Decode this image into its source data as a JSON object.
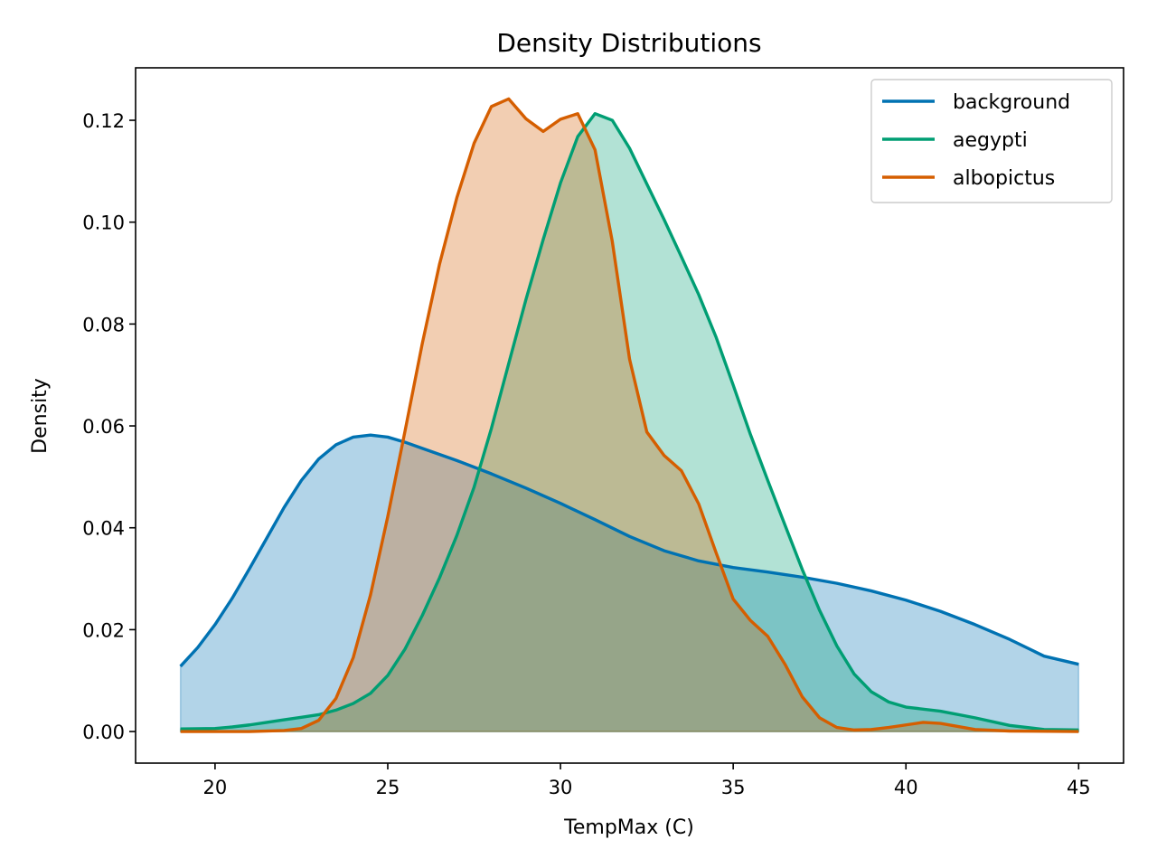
{
  "chart_data": {
    "type": "area",
    "title": "Density Distributions",
    "xlabel": "TempMax (C)",
    "ylabel": "Density",
    "xlim": [
      17.7,
      46.3
    ],
    "ylim": [
      -0.0062,
      0.1303
    ],
    "xticks": [
      20,
      25,
      30,
      35,
      40,
      45
    ],
    "yticks": [
      0.0,
      0.02,
      0.04,
      0.06,
      0.08,
      0.1,
      0.12
    ],
    "xtick_labels": [
      "20",
      "25",
      "30",
      "35",
      "40",
      "45"
    ],
    "ytick_labels": [
      "0.00",
      "0.02",
      "0.04",
      "0.06",
      "0.08",
      "0.10",
      "0.12"
    ],
    "grid": false,
    "legend_position": "top-right",
    "series": [
      {
        "name": "background",
        "color": "#0072b2",
        "points": [
          [
            19.0,
            0.0128
          ],
          [
            19.5,
            0.0165
          ],
          [
            20.0,
            0.021
          ],
          [
            20.5,
            0.0262
          ],
          [
            21.0,
            0.032
          ],
          [
            21.5,
            0.038
          ],
          [
            22.0,
            0.044
          ],
          [
            22.5,
            0.0493
          ],
          [
            23.0,
            0.0535
          ],
          [
            23.5,
            0.0563
          ],
          [
            24.0,
            0.0578
          ],
          [
            24.5,
            0.0582
          ],
          [
            25.0,
            0.0578
          ],
          [
            25.5,
            0.0568
          ],
          [
            26.0,
            0.0556
          ],
          [
            27.0,
            0.0532
          ],
          [
            28.0,
            0.0506
          ],
          [
            29.0,
            0.0478
          ],
          [
            30.0,
            0.0448
          ],
          [
            31.0,
            0.0416
          ],
          [
            32.0,
            0.0383
          ],
          [
            33.0,
            0.0355
          ],
          [
            34.0,
            0.0335
          ],
          [
            35.0,
            0.0322
          ],
          [
            36.0,
            0.0313
          ],
          [
            37.0,
            0.0303
          ],
          [
            38.0,
            0.0291
          ],
          [
            39.0,
            0.0276
          ],
          [
            40.0,
            0.0258
          ],
          [
            41.0,
            0.0236
          ],
          [
            42.0,
            0.021
          ],
          [
            43.0,
            0.0181
          ],
          [
            44.0,
            0.0148
          ],
          [
            45.0,
            0.0132
          ]
        ]
      },
      {
        "name": "aegypti",
        "color": "#009e73",
        "points": [
          [
            19.0,
            0.0005
          ],
          [
            20.0,
            0.0006
          ],
          [
            20.5,
            0.0009
          ],
          [
            21.0,
            0.0013
          ],
          [
            21.5,
            0.0018
          ],
          [
            22.0,
            0.0023
          ],
          [
            22.5,
            0.0028
          ],
          [
            23.0,
            0.0033
          ],
          [
            23.5,
            0.0042
          ],
          [
            24.0,
            0.0055
          ],
          [
            24.5,
            0.0075
          ],
          [
            25.0,
            0.011
          ],
          [
            25.5,
            0.0162
          ],
          [
            26.0,
            0.0228
          ],
          [
            26.5,
            0.0302
          ],
          [
            27.0,
            0.0385
          ],
          [
            27.5,
            0.048
          ],
          [
            28.0,
            0.0595
          ],
          [
            28.5,
            0.0722
          ],
          [
            29.0,
            0.0848
          ],
          [
            29.5,
            0.0966
          ],
          [
            30.0,
            0.1077
          ],
          [
            30.5,
            0.1168
          ],
          [
            31.0,
            0.1213
          ],
          [
            31.5,
            0.12
          ],
          [
            32.0,
            0.1145
          ],
          [
            32.5,
            0.1075
          ],
          [
            33.0,
            0.1005
          ],
          [
            33.5,
            0.0932
          ],
          [
            34.0,
            0.0858
          ],
          [
            34.5,
            0.0775
          ],
          [
            35.0,
            0.068
          ],
          [
            35.5,
            0.0583
          ],
          [
            36.0,
            0.0493
          ],
          [
            36.5,
            0.0405
          ],
          [
            37.0,
            0.0318
          ],
          [
            37.5,
            0.0238
          ],
          [
            38.0,
            0.0168
          ],
          [
            38.5,
            0.0113
          ],
          [
            39.0,
            0.0078
          ],
          [
            39.5,
            0.0058
          ],
          [
            40.0,
            0.0048
          ],
          [
            41.0,
            0.004
          ],
          [
            42.0,
            0.0027
          ],
          [
            43.0,
            0.0012
          ],
          [
            44.0,
            0.0004
          ],
          [
            45.0,
            0.0003
          ]
        ]
      },
      {
        "name": "albopictus",
        "color": "#d55e00",
        "points": [
          [
            19.0,
            0.0
          ],
          [
            21.0,
            0.0
          ],
          [
            22.0,
            0.0002
          ],
          [
            22.5,
            0.0006
          ],
          [
            23.0,
            0.0022
          ],
          [
            23.5,
            0.0065
          ],
          [
            24.0,
            0.0145
          ],
          [
            24.5,
            0.0268
          ],
          [
            25.0,
            0.0422
          ],
          [
            25.5,
            0.059
          ],
          [
            26.0,
            0.0762
          ],
          [
            26.5,
            0.0918
          ],
          [
            27.0,
            0.1048
          ],
          [
            27.5,
            0.1155
          ],
          [
            28.0,
            0.1227
          ],
          [
            28.5,
            0.1242
          ],
          [
            29.0,
            0.1203
          ],
          [
            29.5,
            0.1178
          ],
          [
            30.0,
            0.1202
          ],
          [
            30.5,
            0.1213
          ],
          [
            31.0,
            0.1142
          ],
          [
            31.5,
            0.0962
          ],
          [
            32.0,
            0.0731
          ],
          [
            32.5,
            0.0588
          ],
          [
            33.0,
            0.0542
          ],
          [
            33.5,
            0.0512
          ],
          [
            34.0,
            0.0447
          ],
          [
            34.5,
            0.0352
          ],
          [
            35.0,
            0.026
          ],
          [
            35.5,
            0.0218
          ],
          [
            36.0,
            0.0187
          ],
          [
            36.5,
            0.0132
          ],
          [
            37.0,
            0.0068
          ],
          [
            37.5,
            0.0027
          ],
          [
            38.0,
            0.0008
          ],
          [
            38.5,
            0.0003
          ],
          [
            39.0,
            0.0004
          ],
          [
            39.5,
            0.0008
          ],
          [
            40.0,
            0.0013
          ],
          [
            40.5,
            0.0018
          ],
          [
            41.0,
            0.0016
          ],
          [
            41.5,
            0.001
          ],
          [
            42.0,
            0.0004
          ],
          [
            43.0,
            0.0001
          ],
          [
            45.0,
            0.0
          ]
        ]
      }
    ]
  }
}
